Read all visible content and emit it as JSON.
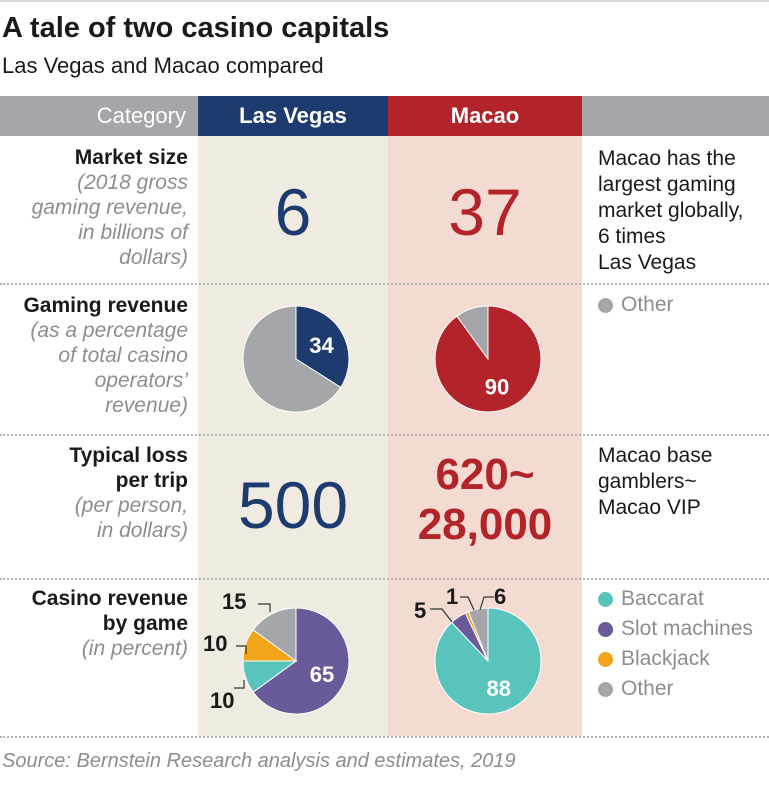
{
  "title": "A tale of two casino capitals",
  "subtitle": "Las Vegas and Macao compared",
  "header": {
    "category": "Category",
    "las_vegas": "Las Vegas",
    "macao": "Macao"
  },
  "colors": {
    "las_vegas": "#1d3b6e",
    "macao": "#b3232a",
    "other": "#a5a6a9",
    "baccarat": "#59c4bb",
    "slot_machines": "#6a5a9a",
    "blackjack": "#f2a51a"
  },
  "rows": {
    "market_size": {
      "label": "Market size",
      "sub": [
        "(2018 gross",
        "gaming revenue,",
        "in billions of",
        "dollars)"
      ],
      "las_vegas": "6",
      "macao": "37",
      "note": [
        "Macao has the",
        "largest gaming",
        "market globally,",
        "6 times",
        "Las Vegas"
      ]
    },
    "gaming_revenue": {
      "label": "Gaming revenue",
      "sub": [
        "(as a percentage",
        "of total casino",
        "operators’",
        "revenue)"
      ],
      "legend_other": "Other"
    },
    "typical_loss": {
      "label": [
        "Typical loss",
        "per trip"
      ],
      "sub": [
        "(per person,",
        "in dollars)"
      ],
      "las_vegas": "500",
      "macao": [
        "620~",
        "28,000"
      ],
      "note": [
        "Macao base",
        "gamblers~",
        "Macao VIP"
      ]
    },
    "casino_revenue": {
      "label": [
        "Casino revenue",
        "by game"
      ],
      "sub": [
        "(in percent)"
      ],
      "legend": [
        "Baccarat",
        "Slot machines",
        "Blackjack",
        "Other"
      ]
    }
  },
  "source": "Source: Bernstein Research analysis and estimates, 2019",
  "chart_data": [
    {
      "type": "pie",
      "title": "Gaming revenue — Las Vegas",
      "categories": [
        "Gaming",
        "Other"
      ],
      "values": [
        34,
        66
      ],
      "labels": [
        "34",
        ""
      ]
    },
    {
      "type": "pie",
      "title": "Gaming revenue — Macao",
      "categories": [
        "Gaming",
        "Other"
      ],
      "values": [
        90,
        10
      ],
      "labels": [
        "90",
        ""
      ]
    },
    {
      "type": "pie",
      "title": "Casino revenue by game — Las Vegas",
      "categories": [
        "Slot machines",
        "Baccarat",
        "Blackjack",
        "Other"
      ],
      "values": [
        65,
        10,
        10,
        15
      ],
      "labels": [
        "65",
        "10",
        "10",
        "15"
      ]
    },
    {
      "type": "pie",
      "title": "Casino revenue by game — Macao",
      "categories": [
        "Baccarat",
        "Slot machines",
        "Blackjack",
        "Other"
      ],
      "values": [
        88,
        5,
        1,
        6
      ],
      "labels": [
        "88",
        "5",
        "1",
        "6"
      ]
    }
  ]
}
